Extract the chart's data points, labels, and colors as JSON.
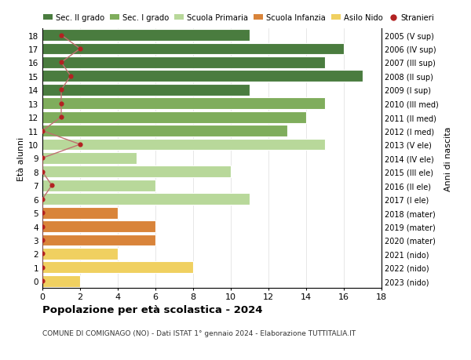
{
  "ages": [
    18,
    17,
    16,
    15,
    14,
    13,
    12,
    11,
    10,
    9,
    8,
    7,
    6,
    5,
    4,
    3,
    2,
    1,
    0
  ],
  "right_labels": [
    "2005 (V sup)",
    "2006 (IV sup)",
    "2007 (III sup)",
    "2008 (II sup)",
    "2009 (I sup)",
    "2010 (III med)",
    "2011 (II med)",
    "2012 (I med)",
    "2013 (V ele)",
    "2014 (IV ele)",
    "2015 (III ele)",
    "2016 (II ele)",
    "2017 (I ele)",
    "2018 (mater)",
    "2019 (mater)",
    "2020 (mater)",
    "2021 (nido)",
    "2022 (nido)",
    "2023 (nido)"
  ],
  "bar_values": [
    11,
    16,
    15,
    17,
    11,
    15,
    14,
    13,
    15,
    5,
    10,
    6,
    11,
    4,
    6,
    6,
    4,
    8,
    2
  ],
  "bar_colors": [
    "#4a7c3f",
    "#4a7c3f",
    "#4a7c3f",
    "#4a7c3f",
    "#4a7c3f",
    "#7fad5c",
    "#7fad5c",
    "#7fad5c",
    "#b8d89a",
    "#b8d89a",
    "#b8d89a",
    "#b8d89a",
    "#b8d89a",
    "#d9843a",
    "#d9843a",
    "#d9843a",
    "#f0d060",
    "#f0d060",
    "#f0d060"
  ],
  "stranieri_x": [
    1,
    2,
    1,
    1.5,
    1,
    1,
    1,
    0,
    2,
    0,
    0,
    0.5,
    0,
    0,
    0,
    0,
    0,
    0,
    0
  ],
  "xlim": [
    0,
    18
  ],
  "ylim": [
    -0.5,
    18.5
  ],
  "xlabel_ticks": [
    0,
    2,
    4,
    6,
    8,
    10,
    12,
    14,
    16,
    18
  ],
  "ylabel_left": "Età alunni",
  "ylabel_right": "Anni di nascita",
  "title": "Popolazione per età scolastica - 2024",
  "subtitle": "COMUNE DI COMIGNAGO (NO) - Dati ISTAT 1° gennaio 2024 - Elaborazione TUTTITALIA.IT",
  "legend_labels": [
    "Sec. II grado",
    "Sec. I grado",
    "Scuola Primaria",
    "Scuola Infanzia",
    "Asilo Nido",
    "Stranieri"
  ],
  "legend_colors": [
    "#4a7c3f",
    "#7fad5c",
    "#b8d89a",
    "#d9843a",
    "#f0d060",
    "#b22222"
  ],
  "stranieri_dot_color": "#b22222",
  "stranieri_line_color": "#c07070",
  "grid_color": "#dddddd",
  "bar_edge_color": "#ffffff",
  "bg_color": "#ffffff",
  "bar_height": 0.85
}
